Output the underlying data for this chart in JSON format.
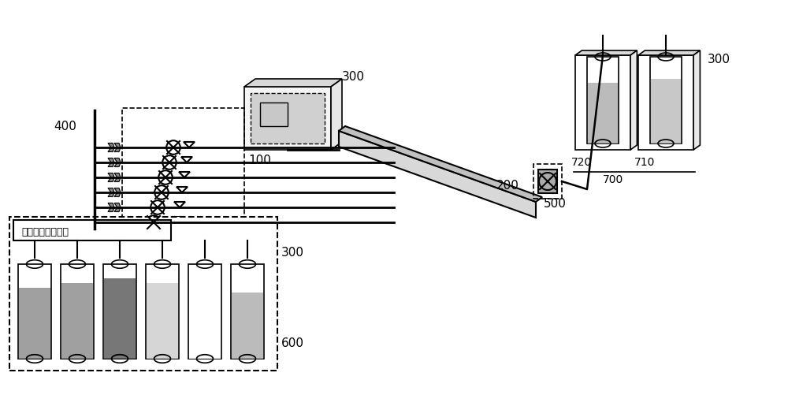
{
  "bg_color": "#ffffff",
  "line_color": "#000000",
  "label_100": "100",
  "label_200": "200",
  "label_300": "300",
  "label_400": "400",
  "label_500": "500",
  "label_600": "600",
  "label_700": "700",
  "label_710": "710",
  "label_720": "720",
  "chinese_label": "氮气供压推送模块",
  "figsize": [
    10,
    5.2
  ],
  "dpi": 100
}
